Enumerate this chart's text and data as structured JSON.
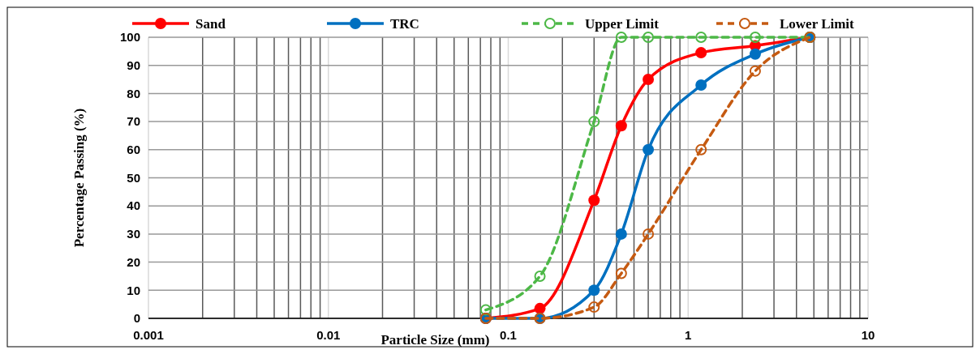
{
  "chart_data": {
    "type": "line",
    "xlabel": "Particle Size (mm)",
    "ylabel": "Percentage Passing (%)",
    "log": "x",
    "x": [
      0.075,
      0.15,
      0.3,
      0.425,
      0.6,
      1.18,
      2.36,
      4.75
    ],
    "xlim": [
      0.001,
      10
    ],
    "xticks": [
      0.001,
      0.01,
      0.1,
      1,
      10
    ],
    "ylim": [
      0,
      100
    ],
    "yticks": [
      0,
      10,
      20,
      30,
      40,
      50,
      60,
      70,
      80,
      90,
      100
    ],
    "grid": true,
    "legend": "top",
    "marker": "circle",
    "series": [
      {
        "name": "Sand",
        "color": "#ff0000",
        "line_style": "solid",
        "values": [
          0,
          3.5,
          42,
          68.5,
          85,
          94.5,
          97,
          100
        ]
      },
      {
        "name": "TRC",
        "color": "#0070c0",
        "line_style": "solid",
        "values": [
          0,
          0,
          10,
          30,
          60,
          83,
          94,
          100
        ]
      },
      {
        "name": "Upper Limit",
        "color": "#4db847",
        "line_style": "dashed",
        "values": [
          3,
          15,
          70,
          100,
          100,
          100,
          100,
          100
        ]
      },
      {
        "name": "Lower Limit",
        "color": "#c55a11",
        "line_style": "dashed",
        "values": [
          0,
          0,
          4,
          16,
          30,
          60,
          88,
          100
        ]
      }
    ]
  }
}
